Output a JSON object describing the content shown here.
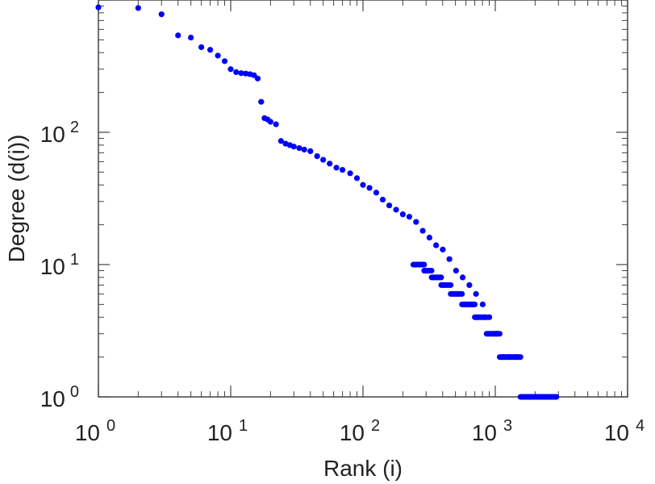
{
  "chart_data": {
    "type": "scatter",
    "title": "",
    "xlabel": "Rank (i)",
    "ylabel": "Degree (d(i))",
    "xscale": "log",
    "yscale": "log",
    "xlim": [
      1,
      10000
    ],
    "ylim": [
      1,
      1000
    ],
    "x_ticks": [
      {
        "base": "10",
        "exp": "0"
      },
      {
        "base": "10",
        "exp": "1"
      },
      {
        "base": "10",
        "exp": "2"
      },
      {
        "base": "10",
        "exp": "3"
      },
      {
        "base": "10",
        "exp": "4"
      }
    ],
    "y_ticks": [
      {
        "base": "10",
        "exp": "0"
      },
      {
        "base": "10",
        "exp": "1"
      },
      {
        "base": "10",
        "exp": "2"
      }
    ],
    "grid": false,
    "marker_color": "#0000ff",
    "points": [
      [
        1,
        880
      ],
      [
        2,
        870
      ],
      [
        3,
        780
      ],
      [
        4,
        540
      ],
      [
        5,
        520
      ],
      [
        6,
        440
      ],
      [
        7,
        420
      ],
      [
        8,
        380
      ],
      [
        9,
        345
      ],
      [
        10,
        300
      ],
      [
        11,
        285
      ],
      [
        12,
        280
      ],
      [
        13,
        278
      ],
      [
        14,
        275
      ],
      [
        15,
        270
      ],
      [
        16,
        255
      ],
      [
        17,
        170
      ],
      [
        18,
        128
      ],
      [
        19,
        125
      ],
      [
        20,
        120
      ],
      [
        22,
        115
      ],
      [
        24,
        86
      ],
      [
        26,
        82
      ],
      [
        28,
        80
      ],
      [
        30,
        78
      ],
      [
        33,
        76
      ],
      [
        36,
        74
      ],
      [
        40,
        72
      ],
      [
        45,
        66
      ],
      [
        50,
        62
      ],
      [
        56,
        58
      ],
      [
        63,
        54
      ],
      [
        70,
        52
      ],
      [
        80,
        49
      ],
      [
        90,
        45
      ],
      [
        100,
        40
      ],
      [
        112,
        38
      ],
      [
        126,
        35
      ],
      [
        141,
        31
      ],
      [
        158,
        28
      ],
      [
        178,
        26
      ],
      [
        200,
        24
      ],
      [
        224,
        23
      ],
      [
        252,
        21
      ],
      [
        283,
        18
      ],
      [
        318,
        16
      ],
      [
        357,
        14
      ],
      [
        401,
        13
      ],
      [
        450,
        11
      ],
      [
        505,
        9
      ],
      [
        567,
        8
      ],
      [
        637,
        7
      ],
      [
        715,
        6
      ],
      [
        803,
        5
      ],
      [
        902,
        4
      ],
      [
        1012,
        3
      ],
      [
        1136,
        2
      ],
      [
        1275,
        2
      ],
      [
        1431,
        2
      ],
      [
        1607,
        1
      ],
      [
        1804,
        1
      ],
      [
        2025,
        1
      ],
      [
        2273,
        1
      ],
      [
        2552,
        1
      ],
      [
        2865,
        1
      ]
    ],
    "bands": [
      {
        "y": 10,
        "x_from": 240,
        "x_to": 290
      },
      {
        "y": 9,
        "x_from": 290,
        "x_to": 330
      },
      {
        "y": 8,
        "x_from": 330,
        "x_to": 390
      },
      {
        "y": 7,
        "x_from": 390,
        "x_to": 460
      },
      {
        "y": 6,
        "x_from": 460,
        "x_to": 560
      },
      {
        "y": 5,
        "x_from": 560,
        "x_to": 700
      },
      {
        "y": 4,
        "x_from": 700,
        "x_to": 860
      },
      {
        "y": 3,
        "x_from": 860,
        "x_to": 1080
      },
      {
        "y": 2,
        "x_from": 1080,
        "x_to": 1550
      },
      {
        "y": 1,
        "x_from": 1550,
        "x_to": 2900
      }
    ]
  }
}
